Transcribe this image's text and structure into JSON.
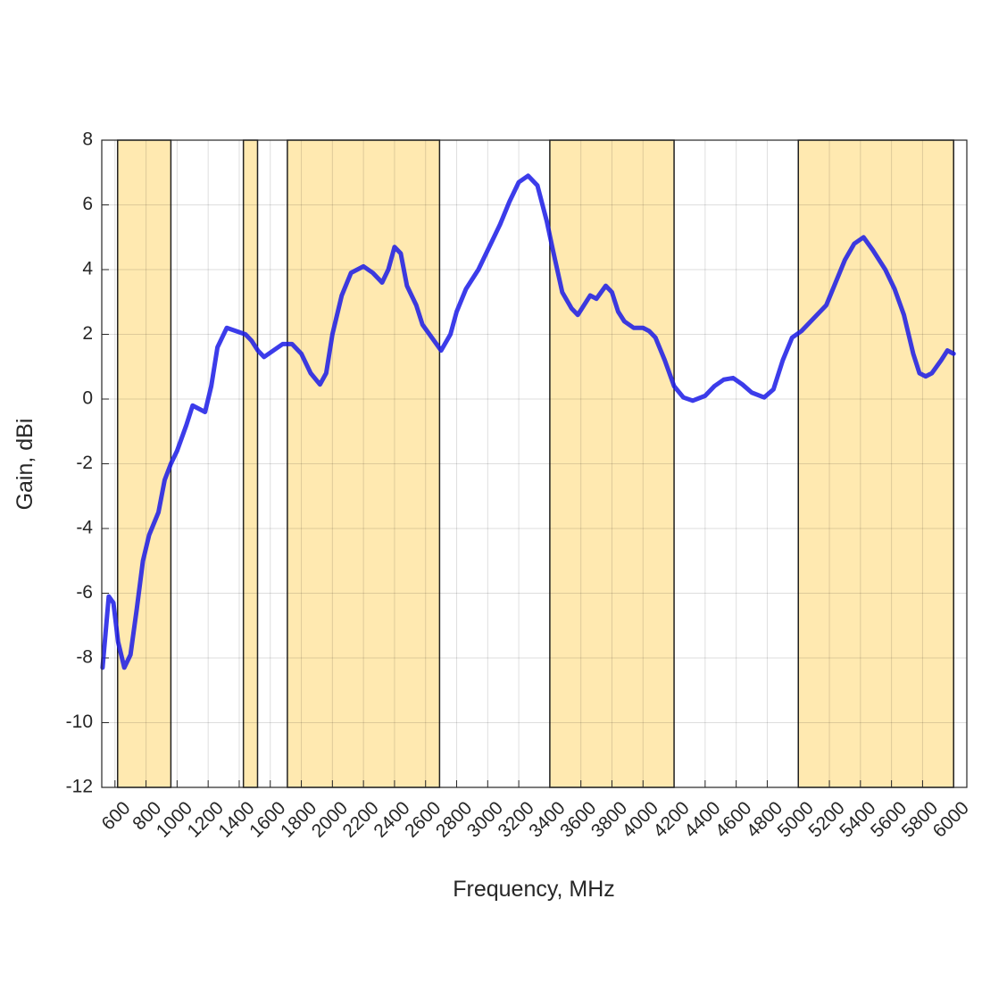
{
  "chart_data": {
    "type": "line",
    "xlabel": "Frequency, MHz",
    "ylabel": "Gain, dBi",
    "xlim": [
      515,
      6085
    ],
    "ylim": [
      -12,
      8
    ],
    "xticks": [
      600,
      800,
      1000,
      1200,
      1400,
      1600,
      1800,
      2000,
      2200,
      2400,
      2600,
      2800,
      3000,
      3200,
      3400,
      3600,
      3800,
      4000,
      4200,
      4400,
      4600,
      4800,
      5000,
      5200,
      5400,
      5600,
      5800,
      6000
    ],
    "yticks": [
      -12,
      -10,
      -8,
      -6,
      -4,
      -2,
      0,
      2,
      4,
      6,
      8
    ],
    "grid": true,
    "band_color": "#ffe9b0",
    "bands": [
      [
        617,
        960
      ],
      [
        1427,
        1518
      ],
      [
        1710,
        2690
      ],
      [
        3400,
        4200
      ],
      [
        5000,
        6000
      ]
    ],
    "x": [
      520,
      560,
      590,
      620,
      660,
      700,
      740,
      780,
      820,
      880,
      920,
      960,
      1000,
      1060,
      1100,
      1140,
      1180,
      1220,
      1260,
      1320,
      1380,
      1440,
      1480,
      1520,
      1560,
      1620,
      1680,
      1740,
      1800,
      1860,
      1920,
      1960,
      2000,
      2060,
      2120,
      2200,
      2260,
      2320,
      2360,
      2400,
      2440,
      2480,
      2540,
      2580,
      2640,
      2700,
      2760,
      2800,
      2860,
      2940,
      3000,
      3080,
      3140,
      3200,
      3260,
      3320,
      3380,
      3420,
      3480,
      3540,
      3580,
      3620,
      3660,
      3700,
      3760,
      3800,
      3840,
      3880,
      3940,
      4000,
      4040,
      4080,
      4140,
      4200,
      4260,
      4320,
      4400,
      4460,
      4520,
      4580,
      4640,
      4700,
      4780,
      4840,
      4900,
      4960,
      5020,
      5100,
      5180,
      5240,
      5300,
      5360,
      5420,
      5480,
      5560,
      5620,
      5680,
      5740,
      5780,
      5820,
      5860,
      5920,
      5960,
      6000
    ],
    "series": [
      {
        "name": "Gain",
        "color": "#1a1ae6",
        "values": [
          -8.3,
          -6.1,
          -6.3,
          -7.5,
          -8.3,
          -7.9,
          -6.5,
          -5.0,
          -4.2,
          -3.5,
          -2.5,
          -2.0,
          -1.6,
          -0.8,
          -0.2,
          -0.3,
          -0.4,
          0.4,
          1.6,
          2.2,
          2.1,
          2.0,
          1.8,
          1.5,
          1.3,
          1.5,
          1.7,
          1.7,
          1.4,
          0.8,
          0.45,
          0.8,
          2.0,
          3.2,
          3.9,
          4.1,
          3.9,
          3.6,
          4.0,
          4.7,
          4.5,
          3.5,
          2.9,
          2.3,
          1.9,
          1.5,
          2.0,
          2.7,
          3.4,
          4.0,
          4.6,
          5.4,
          6.1,
          6.7,
          6.9,
          6.6,
          5.5,
          4.6,
          3.3,
          2.8,
          2.6,
          2.9,
          3.2,
          3.1,
          3.5,
          3.3,
          2.7,
          2.4,
          2.2,
          2.2,
          2.1,
          1.9,
          1.2,
          0.4,
          0.05,
          -0.05,
          0.1,
          0.4,
          0.6,
          0.65,
          0.45,
          0.2,
          0.05,
          0.3,
          1.2,
          1.9,
          2.1,
          2.5,
          2.9,
          3.6,
          4.3,
          4.8,
          5.0,
          4.6,
          4.0,
          3.4,
          2.6,
          1.4,
          0.8,
          0.7,
          0.8,
          1.2,
          1.5,
          1.4
        ]
      }
    ]
  }
}
